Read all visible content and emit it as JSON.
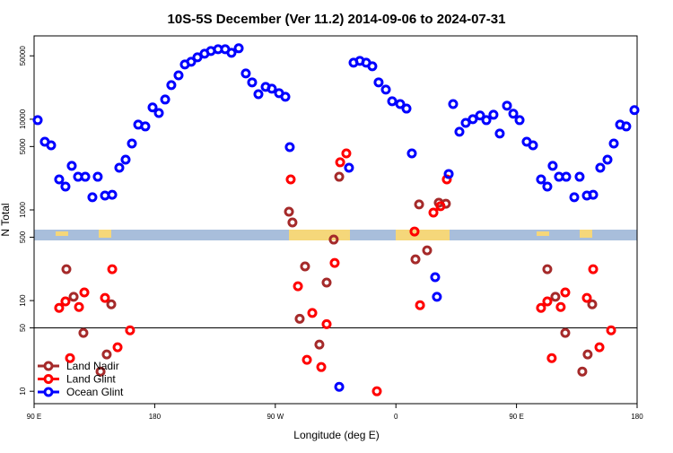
{
  "chart_data": {
    "type": "scatter",
    "title": "10S-5S December (Ver 11.2)   2014-09-06 to 2024-07-31",
    "x_label": "Longitude (deg E)",
    "y_label": "N Total",
    "log_y": true,
    "legend": "bottom-left",
    "hline": 50,
    "xlim": [
      90,
      540
    ],
    "ylim": [
      7.3,
      83000
    ],
    "xticks": [
      {
        "value": 90,
        "label": "90 E"
      },
      {
        "value": 180,
        "label": "180"
      },
      {
        "value": 270,
        "label": "90 W"
      },
      {
        "value": 360,
        "label": "0"
      },
      {
        "value": 450,
        "label": "90 E"
      },
      {
        "value": 540,
        "label": "180"
      }
    ],
    "yticks": [
      10,
      50,
      100,
      500,
      1000,
      5000,
      10000,
      50000
    ],
    "series": [
      {
        "name": "Land Nadir",
        "color": "#a52a2a",
        "x": [
          114.1,
          119.5,
          126.8,
          139.6,
          144.2,
          147.6,
          280.2,
          282.8,
          288.2,
          292.2,
          302.9,
          308.3,
          313.6,
          317.7,
          377.3,
          383.3,
          374.6,
          392.0,
          397.3,
          473.0,
          479.0,
          486.4,
          499.1,
          503.1,
          506.5
        ],
        "values": [
          222,
          110,
          44,
          16.5,
          25.5,
          91,
          955,
          727,
          63,
          238,
          32.7,
          158,
          471,
          2320,
          1150,
          358,
          285,
          1200,
          1170,
          222,
          110,
          44,
          16.5,
          25.5,
          91
        ]
      },
      {
        "name": "Land Glint",
        "color": "#ff0000",
        "x": [
          108.7,
          113.4,
          116.8,
          123.5,
          127.5,
          142.9,
          148.3,
          152.3,
          161.6,
          281.5,
          286.9,
          293.6,
          297.6,
          304.3,
          308.3,
          314.3,
          318.4,
          323.0,
          345.8,
          373.9,
          378.0,
          388.0,
          393.3,
          398.0,
          468.3,
          473.0,
          476.3,
          483.0,
          486.4,
          502.5,
          507.2,
          511.9,
          520.6
        ],
        "values": [
          83,
          98,
          23.2,
          85,
          123,
          107,
          222,
          30.6,
          47,
          2170,
          144,
          22.2,
          73,
          18.5,
          55,
          260,
          3350,
          4200,
          10,
          578,
          89,
          935,
          1100,
          2170,
          83,
          98,
          23.2,
          85,
          123,
          107,
          222,
          30.6,
          47
        ]
      },
      {
        "name": "Ocean Glint",
        "color": "#0000ff",
        "x": [
          92.7,
          98.0,
          102.7,
          108.7,
          113.4,
          118.1,
          122.8,
          128.2,
          133.5,
          137.5,
          142.9,
          148.3,
          153.6,
          158.3,
          163.0,
          167.7,
          173.0,
          178.4,
          183.1,
          187.8,
          192.4,
          197.8,
          202.5,
          207.2,
          211.9,
          217.2,
          221.9,
          227.3,
          232.6,
          237.3,
          242.7,
          248.0,
          252.7,
          257.4,
          262.8,
          267.4,
          272.8,
          277.5,
          280.8,
          325.0,
          328.4,
          333.1,
          337.8,
          342.4,
          347.1,
          352.5,
          357.2,
          363.2,
          367.9,
          371.9,
          399.4,
          402.7,
          407.4,
          412.1,
          417.4,
          422.8,
          427.5,
          432.8,
          437.5,
          442.9,
          447.6,
          452.3,
          457.6,
          462.3,
          468.3,
          473.0,
          477.0,
          481.7,
          487.1,
          493.1,
          497.1,
          502.5,
          507.2,
          512.5,
          517.9,
          522.6,
          527.3,
          531.9,
          538.0,
          317.7,
          389.3,
          390.6
        ],
        "values": [
          9770,
          5650,
          5160,
          2170,
          1810,
          3060,
          2320,
          2320,
          1380,
          2320,
          1440,
          1470,
          2920,
          3580,
          5400,
          8720,
          8330,
          13500,
          11700,
          16500,
          23800,
          30500,
          40200,
          43000,
          48200,
          52800,
          56500,
          59200,
          59200,
          54000,
          60600,
          32000,
          25500,
          18900,
          22700,
          21700,
          19400,
          17700,
          4930,
          2920,
          42000,
          44000,
          42000,
          38400,
          25500,
          21200,
          15800,
          14700,
          13100,
          4200,
          2490,
          14700,
          7270,
          9120,
          10000,
          11000,
          9770,
          11200,
          6950,
          14100,
          11500,
          9770,
          5650,
          5160,
          2170,
          1810,
          3060,
          2320,
          2320,
          1380,
          2320,
          1440,
          1470,
          2920,
          3580,
          5400,
          8720,
          8330,
          12600,
          11.2,
          181,
          110
        ]
      }
    ]
  }
}
